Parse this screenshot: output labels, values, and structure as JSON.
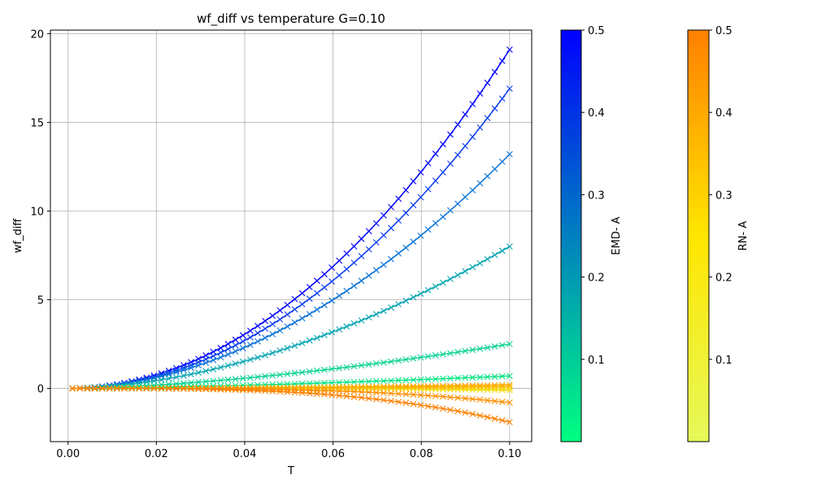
{
  "chart_data": {
    "type": "line",
    "title": "wf_diff vs temperature G=0.10",
    "xlabel": "T",
    "ylabel": "wf_diff",
    "xlim": [
      -0.004,
      0.105
    ],
    "ylim": [
      -3.0,
      20.2
    ],
    "xticks": [
      0.0,
      0.02,
      0.04,
      0.06,
      0.08,
      0.1
    ],
    "xtick_labels": [
      "0.00",
      "0.02",
      "0.04",
      "0.06",
      "0.08",
      "0.10"
    ],
    "yticks": [
      0,
      5,
      10,
      15,
      20
    ],
    "ytick_labels": [
      "0",
      "5",
      "10",
      "15",
      "20"
    ],
    "grid": true,
    "marker": "x",
    "x_range": [
      0.001,
      0.1
    ],
    "n_points": 60,
    "series": [
      {
        "group": "EMD",
        "A": 0.5,
        "color": "#0000ff",
        "end_value": 19.1,
        "exponent": 2.0
      },
      {
        "group": "EMD",
        "A": 0.45,
        "color": "#0a3df0",
        "end_value": 16.9,
        "exponent": 2.0
      },
      {
        "group": "EMD",
        "A": 0.35,
        "color": "#0a74d8",
        "end_value": 13.2,
        "exponent": 1.9
      },
      {
        "group": "EMD",
        "A": 0.25,
        "color": "#0aa6b4",
        "end_value": 8.0,
        "exponent": 1.8
      },
      {
        "group": "EMD",
        "A": 0.15,
        "color": "#0fd296",
        "end_value": 2.5,
        "exponent": 1.6
      },
      {
        "group": "EMD",
        "A": 0.05,
        "color": "#0ae586",
        "end_value": 0.7,
        "exponent": 1.5
      },
      {
        "group": "RN",
        "A": 0.05,
        "color": "#e6ee55",
        "end_value": 0.0,
        "peak_value": 0.0
      },
      {
        "group": "RN",
        "A": 0.15,
        "color": "#f9dc10",
        "end_value": -0.1,
        "peak_value": 0.15
      },
      {
        "group": "RN",
        "A": 0.25,
        "color": "#ffc000",
        "end_value": 0.1,
        "peak_value": 0.3
      },
      {
        "group": "RN",
        "A": 0.35,
        "color": "#ffa800",
        "end_value": 0.2,
        "peak_value": 0.45
      },
      {
        "group": "RN",
        "A": 0.45,
        "color": "#ff9000",
        "end_value": -0.8,
        "peak_value": 0.5
      },
      {
        "group": "RN",
        "A": 0.5,
        "color": "#ff8000",
        "end_value": -1.9,
        "peak_value": 0.5
      }
    ],
    "colorbars": [
      {
        "label": "EMD- A",
        "range": [
          0.0,
          0.5
        ],
        "ticks": [
          0.1,
          0.2,
          0.3,
          0.4,
          0.5
        ],
        "tick_labels": [
          "0.1",
          "0.2",
          "0.3",
          "0.4",
          "0.5"
        ],
        "colors": [
          "#00ff80",
          "#0000ff"
        ]
      },
      {
        "label": "RN- A",
        "range": [
          0.0,
          0.5
        ],
        "ticks": [
          0.1,
          0.2,
          0.3,
          0.4,
          0.5
        ],
        "tick_labels": [
          "0.1",
          "0.2",
          "0.3",
          "0.4",
          "0.5"
        ],
        "colors": [
          "#e6f85a",
          "#ffe600",
          "#ff8000"
        ]
      }
    ]
  }
}
